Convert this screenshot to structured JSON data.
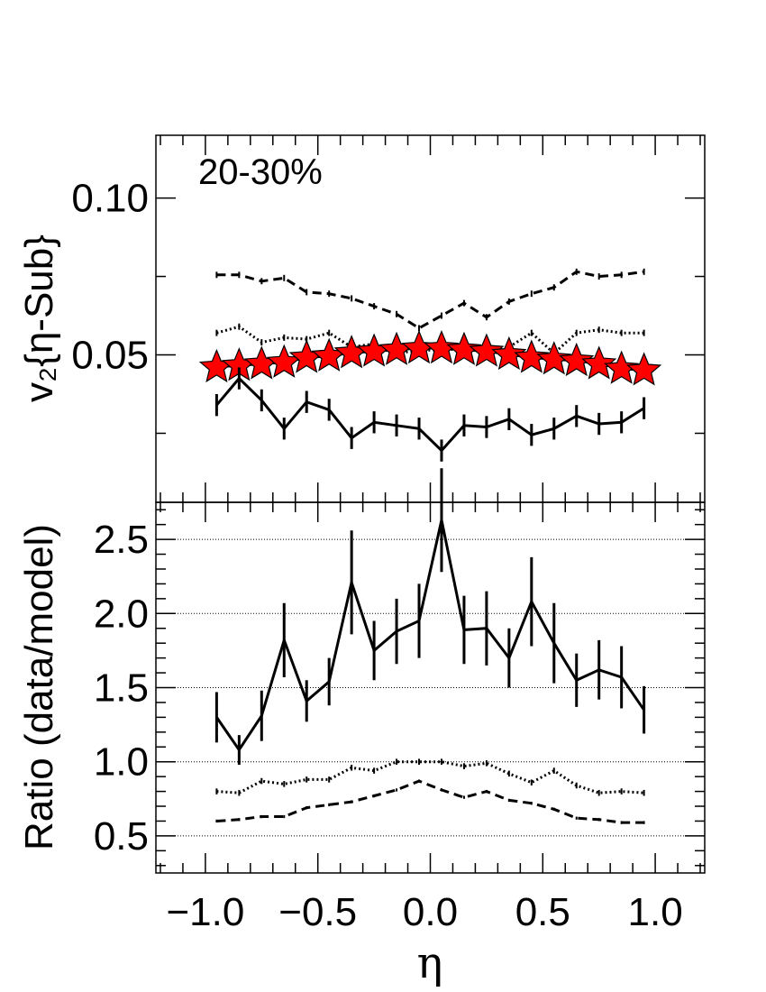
{
  "chart_data": [
    {
      "type": "line",
      "panel": "upper",
      "annotation": "20-30%",
      "ylabel": "v₂{η-Sub}",
      "xlim": [
        -1.22,
        1.22
      ],
      "ylim": [
        0.003,
        0.12
      ],
      "yticks": [
        0.05,
        0.1
      ],
      "ytick_labels": [
        "0.05",
        "0.10"
      ],
      "x": [
        -0.95,
        -0.85,
        -0.75,
        -0.65,
        -0.55,
        -0.45,
        -0.35,
        -0.25,
        -0.15,
        -0.05,
        0.05,
        0.15,
        0.25,
        0.35,
        0.45,
        0.55,
        0.65,
        0.75,
        0.85,
        0.95
      ],
      "series": [
        {
          "style": "dashed",
          "values": [
            0.0755,
            0.0755,
            0.0735,
            0.0745,
            0.07,
            0.0695,
            0.068,
            0.0655,
            0.063,
            0.0585,
            0.0625,
            0.0665,
            0.062,
            0.067,
            0.0695,
            0.0715,
            0.0765,
            0.075,
            0.0755,
            0.0765
          ],
          "errors": [
            0.001,
            0.001,
            0.001,
            0.001,
            0.001,
            0.001,
            0.001,
            0.001,
            0.001,
            0.001,
            0.001,
            0.001,
            0.001,
            0.001,
            0.001,
            0.001,
            0.001,
            0.001,
            0.001,
            0.001
          ]
        },
        {
          "style": "dotted",
          "values": [
            0.057,
            0.059,
            0.054,
            0.0555,
            0.055,
            0.057,
            0.0525,
            0.0535,
            0.0505,
            0.0515,
            0.0515,
            0.052,
            0.0515,
            0.0525,
            0.057,
            0.0505,
            0.057,
            0.058,
            0.057,
            0.057
          ],
          "errors": [
            0.001,
            0.001,
            0.001,
            0.001,
            0.001,
            0.001,
            0.001,
            0.001,
            0.001,
            0.001,
            0.001,
            0.001,
            0.001,
            0.001,
            0.001,
            0.001,
            0.001,
            0.001,
            0.001,
            0.001
          ]
        },
        {
          "style": "stars",
          "marker_color": "#ff0000",
          "values": [
            0.046,
            0.0465,
            0.047,
            0.0475,
            0.049,
            0.0495,
            0.0505,
            0.051,
            0.0515,
            0.052,
            0.052,
            0.0515,
            0.051,
            0.05,
            0.049,
            0.0485,
            0.048,
            0.047,
            0.0455,
            0.045
          ],
          "errors": [
            0.0005,
            0.0005,
            0.0005,
            0.0005,
            0.0005,
            0.0005,
            0.0005,
            0.0005,
            0.0005,
            0.0005,
            0.0005,
            0.0005,
            0.0005,
            0.0005,
            0.0005,
            0.0005,
            0.0005,
            0.0005,
            0.0005,
            0.0005
          ]
        },
        {
          "style": "solid",
          "values": [
            0.034,
            0.0425,
            0.0355,
            0.0265,
            0.035,
            0.0325,
            0.0235,
            0.0285,
            0.0275,
            0.0265,
            0.0195,
            0.0275,
            0.027,
            0.0295,
            0.0245,
            0.0265,
            0.0305,
            0.028,
            0.0285,
            0.033
          ],
          "errors": [
            0.0035,
            0.0035,
            0.0035,
            0.0035,
            0.0035,
            0.0035,
            0.0035,
            0.0035,
            0.0035,
            0.0035,
            0.0035,
            0.0035,
            0.0035,
            0.0035,
            0.0035,
            0.0035,
            0.0035,
            0.0035,
            0.0035,
            0.0035
          ]
        }
      ]
    },
    {
      "type": "line",
      "panel": "lower",
      "ylabel": "Ratio (data/model)",
      "xlabel": "η",
      "xlim": [
        -1.22,
        1.22
      ],
      "ylim": [
        0.25,
        2.75
      ],
      "yticks": [
        0.5,
        1.0,
        1.5,
        2.0,
        2.5
      ],
      "ytick_labels": [
        "0.5",
        "1.0",
        "1.5",
        "2.0",
        "2.5"
      ],
      "xticks": [
        -1.0,
        -0.5,
        0.0,
        0.5,
        1.0
      ],
      "xtick_labels": [
        "−1.0",
        "−0.5",
        "0.0",
        "0.5",
        "1.0"
      ],
      "grid_y": [
        0.5,
        1.0,
        1.5,
        2.0,
        2.5
      ],
      "x": [
        -0.95,
        -0.85,
        -0.75,
        -0.65,
        -0.55,
        -0.45,
        -0.35,
        -0.25,
        -0.15,
        -0.05,
        0.05,
        0.15,
        0.25,
        0.35,
        0.45,
        0.55,
        0.65,
        0.75,
        0.85,
        0.95
      ],
      "series": [
        {
          "style": "solid",
          "values": [
            1.3,
            1.08,
            1.31,
            1.82,
            1.41,
            1.54,
            2.21,
            1.75,
            1.88,
            1.95,
            2.63,
            1.89,
            1.9,
            1.7,
            2.08,
            1.8,
            1.55,
            1.62,
            1.57,
            1.35
          ],
          "errors": [
            0.17,
            0.1,
            0.17,
            0.25,
            0.14,
            0.16,
            0.35,
            0.2,
            0.22,
            0.25,
            0.35,
            0.23,
            0.25,
            0.2,
            0.3,
            0.27,
            0.18,
            0.2,
            0.21,
            0.16
          ]
        },
        {
          "style": "dotted",
          "values": [
            0.8,
            0.79,
            0.87,
            0.85,
            0.88,
            0.88,
            0.96,
            0.94,
            1.0,
            1.0,
            1.0,
            0.97,
            0.99,
            0.92,
            0.86,
            0.94,
            0.84,
            0.79,
            0.8,
            0.79
          ],
          "errors": [
            0.02,
            0.02,
            0.02,
            0.02,
            0.02,
            0.02,
            0.02,
            0.02,
            0.02,
            0.02,
            0.02,
            0.02,
            0.02,
            0.02,
            0.02,
            0.02,
            0.02,
            0.02,
            0.02,
            0.02
          ]
        },
        {
          "style": "dashed",
          "values": [
            0.6,
            0.61,
            0.63,
            0.63,
            0.69,
            0.71,
            0.73,
            0.77,
            0.81,
            0.87,
            0.81,
            0.76,
            0.8,
            0.74,
            0.72,
            0.68,
            0.62,
            0.61,
            0.59,
            0.59
          ],
          "errors": [
            0.01,
            0.01,
            0.01,
            0.01,
            0.01,
            0.01,
            0.01,
            0.01,
            0.01,
            0.01,
            0.01,
            0.01,
            0.01,
            0.01,
            0.01,
            0.01,
            0.01,
            0.01,
            0.01,
            0.01
          ]
        }
      ]
    }
  ]
}
